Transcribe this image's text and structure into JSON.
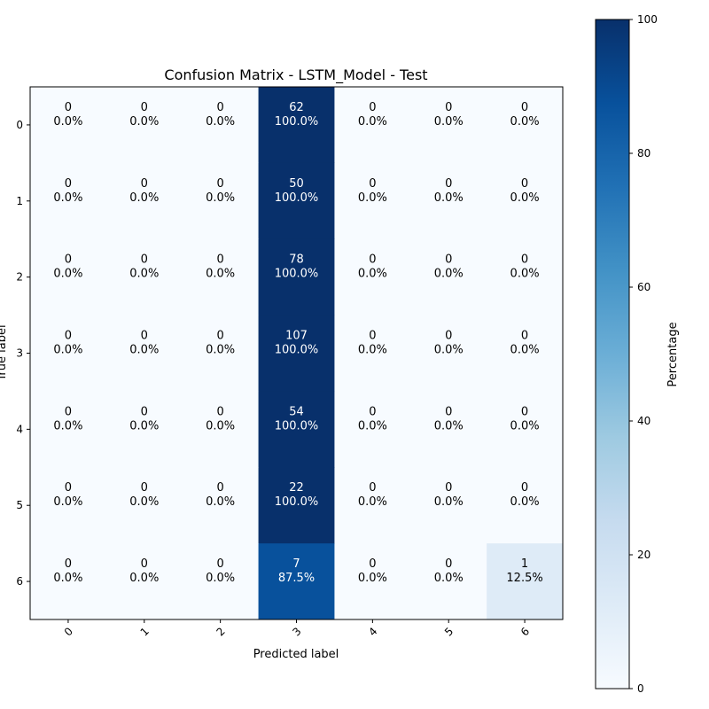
{
  "chart_data": {
    "type": "heatmap",
    "title": "Confusion Matrix - LSTM_Model - Test",
    "xlabel": "Predicted label",
    "ylabel": "True label",
    "x_tick_labels": [
      "0",
      "1",
      "2",
      "3",
      "4",
      "5",
      "6"
    ],
    "y_tick_labels": [
      "0",
      "1",
      "2",
      "3",
      "4",
      "5",
      "6"
    ],
    "counts": [
      [
        0,
        0,
        0,
        62,
        0,
        0,
        0
      ],
      [
        0,
        0,
        0,
        50,
        0,
        0,
        0
      ],
      [
        0,
        0,
        0,
        78,
        0,
        0,
        0
      ],
      [
        0,
        0,
        0,
        107,
        0,
        0,
        0
      ],
      [
        0,
        0,
        0,
        54,
        0,
        0,
        0
      ],
      [
        0,
        0,
        0,
        22,
        0,
        0,
        0
      ],
      [
        0,
        0,
        0,
        7,
        0,
        0,
        1
      ]
    ],
    "percentages": [
      [
        0,
        0,
        0,
        100,
        0,
        0,
        0
      ],
      [
        0,
        0,
        0,
        100,
        0,
        0,
        0
      ],
      [
        0,
        0,
        0,
        100,
        0,
        0,
        0
      ],
      [
        0,
        0,
        0,
        100,
        0,
        0,
        0
      ],
      [
        0,
        0,
        0,
        100,
        0,
        0,
        0
      ],
      [
        0,
        0,
        0,
        100,
        0,
        0,
        0
      ],
      [
        0,
        0,
        0,
        87.5,
        0,
        0,
        12.5
      ]
    ],
    "cell_labels": [
      [
        "0.0%",
        "0.0%",
        "0.0%",
        "100.0%",
        "0.0%",
        "0.0%",
        "0.0%"
      ],
      [
        "0.0%",
        "0.0%",
        "0.0%",
        "100.0%",
        "0.0%",
        "0.0%",
        "0.0%"
      ],
      [
        "0.0%",
        "0.0%",
        "0.0%",
        "100.0%",
        "0.0%",
        "0.0%",
        "0.0%"
      ],
      [
        "0.0%",
        "0.0%",
        "0.0%",
        "100.0%",
        "0.0%",
        "0.0%",
        "0.0%"
      ],
      [
        "0.0%",
        "0.0%",
        "0.0%",
        "100.0%",
        "0.0%",
        "0.0%",
        "0.0%"
      ],
      [
        "0.0%",
        "0.0%",
        "0.0%",
        "100.0%",
        "0.0%",
        "0.0%",
        "0.0%"
      ],
      [
        "0.0%",
        "0.0%",
        "0.0%",
        "87.5%",
        "0.0%",
        "0.0%",
        "12.5%"
      ]
    ],
    "colorbar": {
      "label": "Percentage",
      "range": [
        0,
        100
      ],
      "ticks": [
        0,
        20,
        40,
        60,
        80,
        100
      ],
      "colormap": "Blues",
      "low_color": "#f7fbff",
      "high_color": "#08306b"
    },
    "text_color_light": "#ffffff",
    "text_color_dark": "#000000"
  }
}
